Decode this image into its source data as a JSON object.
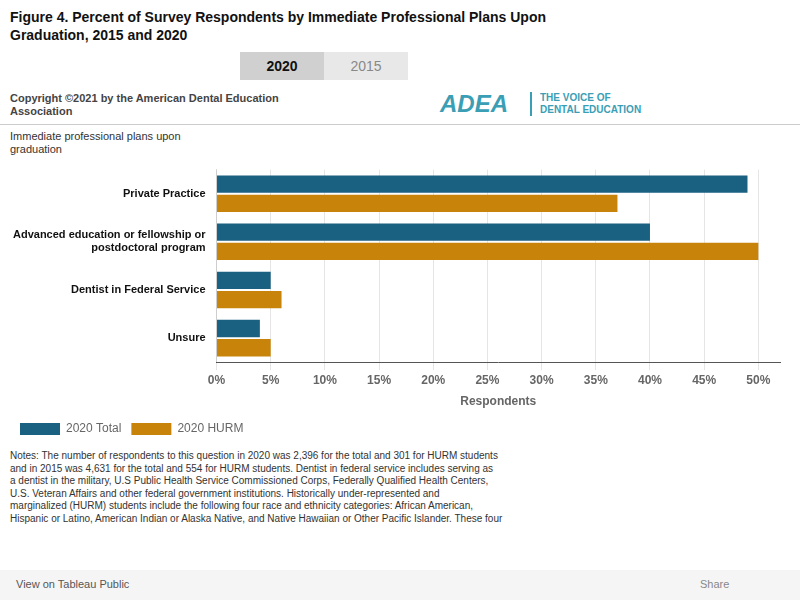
{
  "chart_data": {
    "type": "bar",
    "orientation": "horizontal",
    "title": "Figure 4.  Percent of Survey Respondents by Immediate Professional Plans Upon\nGraduation, 2015 and 2020",
    "categories": [
      "Private Practice",
      "Advanced education or fellowship or\npostdoctoral program",
      "Dentist in Federal Service",
      "Unsure"
    ],
    "series": [
      {
        "name": "2020 Total",
        "color": "#1a6080",
        "values": [
          49,
          40,
          5,
          4
        ]
      },
      {
        "name": "2020 HURM",
        "color": "#c8830a",
        "values": [
          37,
          50,
          6,
          5
        ]
      }
    ],
    "xlabel": "Respondents",
    "xlim": [
      0,
      52
    ],
    "xticks": [
      {
        "value": 0,
        "label": "0%"
      },
      {
        "value": 5,
        "label": "5%"
      },
      {
        "value": 10,
        "label": "10%"
      },
      {
        "value": 15,
        "label": "15%"
      },
      {
        "value": 20,
        "label": "20%"
      },
      {
        "value": 25,
        "label": "25%"
      },
      {
        "value": 30,
        "label": "30%"
      },
      {
        "value": 35,
        "label": "35%"
      },
      {
        "value": 40,
        "label": "40%"
      },
      {
        "value": 45,
        "label": "45%"
      },
      {
        "value": 50,
        "label": "50%"
      }
    ],
    "grid": true,
    "legend": "lower left",
    "annotations": [
      "Immediate professional plans upon\ngraduation",
      "2020",
      "2015",
      "Copyright ©2021 by the American Dental Education\nAssociation",
      "ADEA",
      "THE VOICE OF\nDENTAL EDUCATION",
      "Notes: The number of respondents to this question in 2020 was 2,396 for the total and 301 for HURM students\nand in 2015 was 4,631 for the total and 554 for HURM students. Dentist in federal service includes serving as\na dentist in the military, U.S Public Health Service Commissioned Corps, Federally Qualified Health Centers,\nU.S. Veteran Affairs and other federal government institutions. Historically under-represented and\nmarginalized (HURM) students include the following four race and ethnicity categories: African American,\nHispanic or Latino, American Indian or Alaska Native, and Native Hawaiian or Other Pacific Islander. These four",
      "View on Tableau Public",
      "Share"
    ]
  }
}
